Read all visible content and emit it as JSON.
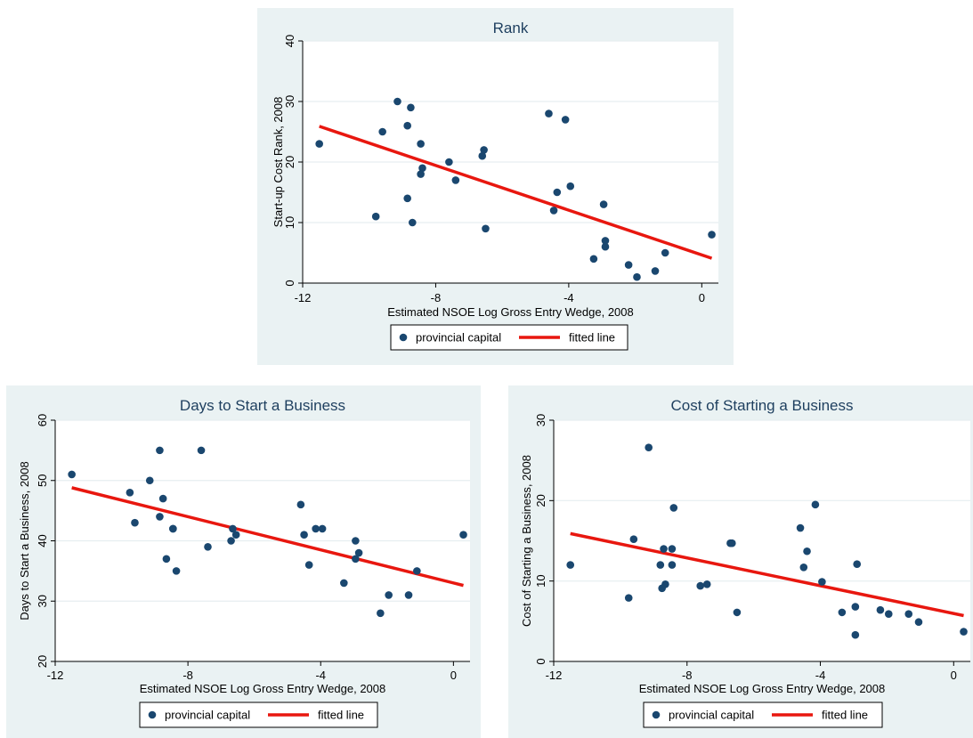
{
  "chart_data": [
    {
      "type": "scatter",
      "title": "Rank",
      "xlabel": "Estimated NSOE Log Gross Entry Wedge, 2008",
      "ylabel": "Start-up Cost Rank, 2008",
      "xlim": [
        -12,
        0.5
      ],
      "ylim": [
        0,
        40
      ],
      "xticks": [
        -12,
        -8,
        -4,
        0
      ],
      "yticks": [
        0,
        10,
        20,
        30,
        40
      ],
      "grid": true,
      "legend": [
        "provincial capital",
        "fitted line"
      ],
      "legend_position": "bottom",
      "series": [
        {
          "name": "provincial capital",
          "kind": "points",
          "x": [
            -11.5,
            -9.8,
            -9.6,
            -9.15,
            -8.85,
            -8.75,
            -8.85,
            -8.7,
            -8.45,
            -8.4,
            -8.45,
            -7.6,
            -7.4,
            -6.6,
            -6.55,
            -6.5,
            -4.6,
            -4.45,
            -4.35,
            -4.1,
            -3.95,
            -2.95,
            -2.9,
            -2.9,
            -3.25,
            -2.2,
            -1.95,
            -1.4,
            -1.1,
            0.3
          ],
          "y": [
            23,
            11,
            25,
            30,
            26,
            29,
            14,
            10,
            23,
            19,
            18,
            20,
            17,
            21,
            22,
            9,
            28,
            12,
            15,
            27,
            16,
            13,
            7,
            6,
            4,
            3,
            1,
            2,
            5,
            8
          ]
        },
        {
          "name": "fitted line",
          "kind": "line",
          "x": [
            -11.5,
            0.3
          ],
          "y": [
            25.9,
            4.1
          ]
        }
      ],
      "colors": {
        "points": "#1a476f",
        "line": "#e8170f"
      }
    },
    {
      "type": "scatter",
      "title": "Days to Start a Business",
      "xlabel": "Estimated NSOE Log Gross Entry Wedge, 2008",
      "ylabel": "Days to Start a Business, 2008",
      "xlim": [
        -12,
        0.5
      ],
      "ylim": [
        20,
        60
      ],
      "xticks": [
        -12,
        -8,
        -4,
        0
      ],
      "yticks": [
        20,
        30,
        40,
        50,
        60
      ],
      "grid": true,
      "legend": [
        "provincial capital",
        "fitted line"
      ],
      "legend_position": "bottom",
      "series": [
        {
          "name": "provincial capital",
          "kind": "points",
          "x": [
            -11.5,
            -9.75,
            -9.6,
            -9.15,
            -8.85,
            -8.85,
            -8.75,
            -8.65,
            -8.45,
            -8.45,
            -8.35,
            -7.6,
            -7.4,
            -6.7,
            -6.65,
            -6.55,
            -4.6,
            -4.5,
            -4.35,
            -4.15,
            -3.95,
            -3.3,
            -2.95,
            -2.95,
            -2.85,
            -2.2,
            -1.95,
            -1.35,
            -1.1,
            0.3
          ],
          "y": [
            51,
            48,
            43,
            50,
            55,
            44,
            47,
            37,
            42,
            42,
            35,
            55,
            39,
            40,
            42,
            41,
            46,
            41,
            36,
            42,
            42,
            33,
            40,
            37,
            38,
            28,
            31,
            31,
            35,
            41
          ]
        },
        {
          "name": "fitted line",
          "kind": "line",
          "x": [
            -11.5,
            0.3
          ],
          "y": [
            48.8,
            32.6
          ]
        }
      ],
      "colors": {
        "points": "#1a476f",
        "line": "#e8170f"
      }
    },
    {
      "type": "scatter",
      "title": "Cost of Starting a Business",
      "xlabel": "Estimated NSOE Log Gross Entry Wedge, 2008",
      "ylabel": "Cost of Starting a Business, 2008",
      "xlim": [
        -12,
        0.5
      ],
      "ylim": [
        0,
        30
      ],
      "xticks": [
        -12,
        -8,
        -4,
        0
      ],
      "yticks": [
        0,
        10,
        20,
        30
      ],
      "grid": true,
      "legend": [
        "provincial capital",
        "fitted line"
      ],
      "legend_position": "bottom",
      "series": [
        {
          "name": "provincial capital",
          "kind": "points",
          "x": [
            -11.5,
            -9.75,
            -9.6,
            -9.15,
            -8.8,
            -8.75,
            -8.7,
            -8.65,
            -8.45,
            -8.45,
            -8.4,
            -7.6,
            -7.4,
            -6.7,
            -6.65,
            -6.5,
            -4.6,
            -4.5,
            -4.4,
            -4.15,
            -3.95,
            -3.35,
            -2.95,
            -2.95,
            -2.9,
            -2.2,
            -1.95,
            -1.35,
            -1.05,
            0.3
          ],
          "y": [
            12,
            7.9,
            15.2,
            26.6,
            12,
            9.1,
            14,
            9.6,
            14,
            12,
            19.1,
            9.4,
            9.6,
            14.7,
            14.7,
            6.1,
            16.6,
            11.7,
            13.7,
            19.5,
            9.9,
            6.1,
            3.3,
            6.8,
            12.1,
            6.4,
            5.9,
            5.9,
            4.9,
            3.7
          ]
        },
        {
          "name": "fitted line",
          "kind": "line",
          "x": [
            -11.5,
            0.3
          ],
          "y": [
            15.9,
            5.7
          ]
        }
      ],
      "colors": {
        "points": "#1a476f",
        "line": "#e8170f"
      }
    }
  ]
}
